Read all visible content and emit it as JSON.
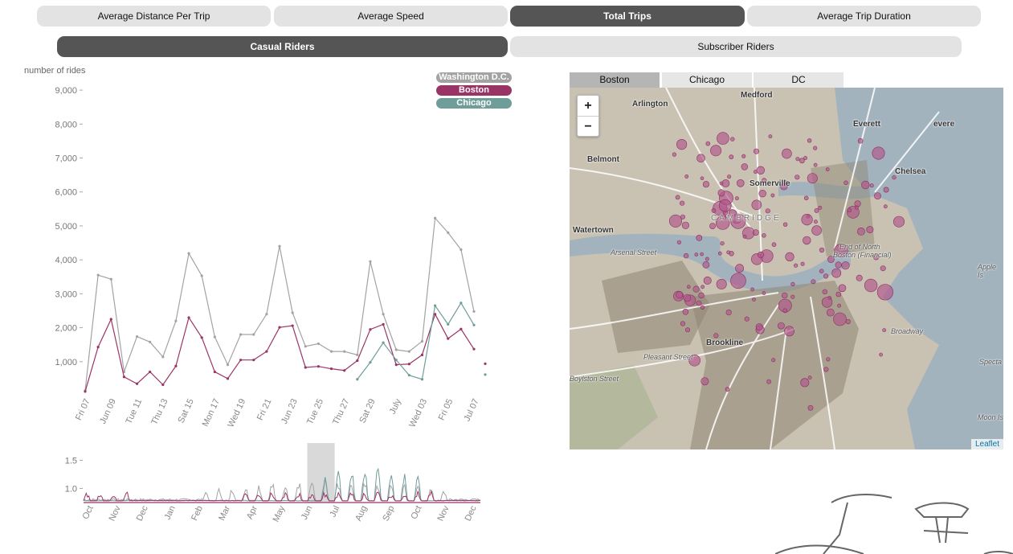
{
  "metrics": [
    {
      "label": "Average Distance Per Trip",
      "active": false
    },
    {
      "label": "Average Speed",
      "active": false
    },
    {
      "label": "Total Trips",
      "active": true
    },
    {
      "label": "Average Trip Duration",
      "active": false
    }
  ],
  "riders": [
    {
      "label": "Casual Riders",
      "active": true
    },
    {
      "label": "Subscriber Riders",
      "active": false
    }
  ],
  "legend": [
    {
      "label": "Washington D.C.",
      "color": "#a3a3a3"
    },
    {
      "label": "Boston",
      "color": "#9b3466"
    },
    {
      "label": "Chicago",
      "color": "#6f9d9a"
    }
  ],
  "map": {
    "tabs": [
      {
        "label": "Boston",
        "active": true
      },
      {
        "label": "Chicago",
        "active": false
      },
      {
        "label": "DC",
        "active": false
      }
    ],
    "zoom_in": "+",
    "zoom_out": "−",
    "attribution": "Leaflet",
    "place_labels": [
      "Medford",
      "Arlington",
      "Everett",
      "evere",
      "Belmont",
      "Chelsea",
      "Somerville",
      "CAMBRIDGE",
      "Watertown",
      "Arsenal Street",
      "Brookline",
      "Apple Is",
      "Specta",
      "Moon Is",
      "Boston (Financial)",
      "End of North",
      "Broadway",
      "Boylston Street",
      "Pleasant Street"
    ],
    "station_color": "#b0548a"
  },
  "chart_data": [
    {
      "type": "line",
      "ylabel": "number of rides",
      "ylim": [
        0,
        9500
      ],
      "yticks": [
        1000,
        2000,
        3000,
        4000,
        5000,
        6000,
        7000,
        8000,
        9000
      ],
      "ytick_labels": [
        "1,000",
        "2,000",
        "3,000",
        "4,000",
        "5,000",
        "6,000",
        "7,000",
        "8,000",
        "9,000"
      ],
      "x_tick_labels": [
        "Fri 07",
        "Jun 09",
        "Tue 11",
        "Thu 13",
        "Sat 15",
        "Mon 17",
        "Wed 19",
        "Fri 21",
        "Jun 23",
        "Tue 25",
        "Thu 27",
        "Sat 29",
        "July",
        "Wed 03",
        "Fri 05",
        "Jul 07"
      ],
      "x_days": 31,
      "series": [
        {
          "name": "Washington D.C.",
          "color": "#a3a3a3",
          "values": [
            150,
            3550,
            3430,
            700,
            1740,
            1580,
            1140,
            2200,
            4190,
            3530,
            1730,
            910,
            1800,
            1800,
            2400,
            4400,
            2440,
            1450,
            1530,
            1300,
            1300,
            1200,
            3950,
            2400,
            1350,
            1300,
            1600,
            5230,
            4800,
            4300,
            2480
          ]
        },
        {
          "name": "Boston",
          "color": "#9b3466",
          "values": [
            120,
            1430,
            2250,
            550,
            350,
            700,
            320,
            870,
            2300,
            1710,
            700,
            500,
            1050,
            1050,
            1300,
            2010,
            2060,
            830,
            860,
            790,
            740,
            1030,
            1950,
            2100,
            910,
            930,
            1200,
            2400,
            1680,
            1960,
            1370
          ]
        },
        {
          "name": "Chicago",
          "color": "#6f9d9a",
          "offset": 21,
          "values": [
            480,
            980,
            1560,
            1050,
            600,
            480,
            2650,
            2100,
            2730,
            2080
          ]
        }
      ],
      "tail_points": [
        {
          "color": "#9b3466",
          "value": 940
        },
        {
          "color": "#6f9d9a",
          "value": 620
        }
      ]
    },
    {
      "type": "area",
      "yticks": [
        1.0,
        1.5
      ],
      "ytick_labels": [
        "1.0",
        "1.5"
      ],
      "x_tick_labels": [
        "Oct",
        "Nov",
        "Dec",
        "Jan",
        "Feb",
        "Mar",
        "Apr",
        "May",
        "Jun",
        "Jul",
        "Aug",
        "Sep",
        "Oct",
        "Nov",
        "Dec"
      ],
      "brush_range": [
        "Jun",
        "Jul"
      ],
      "series": [
        {
          "name": "Washington D.C.",
          "color": "#a3a3a3"
        },
        {
          "name": "Boston",
          "color": "#9b3466"
        },
        {
          "name": "Chicago",
          "color": "#6f9d9a"
        }
      ]
    }
  ]
}
